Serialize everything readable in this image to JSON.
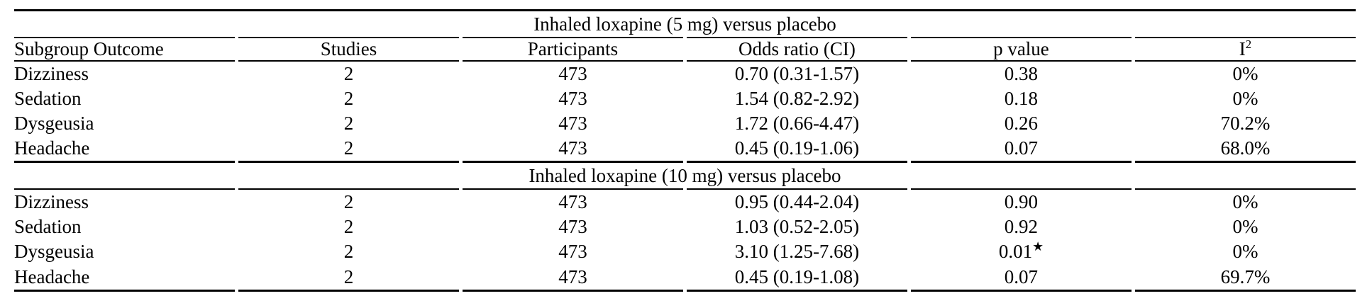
{
  "table": {
    "columns": [
      "Subgroup Outcome",
      "Studies",
      "Participants",
      "Odds ratio (CI)",
      "p value",
      "I"
    ],
    "i2_sup": "2",
    "sections": [
      {
        "title": "Inhaled loxapine (5 mg) versus placebo",
        "rows": [
          {
            "outcome": "Dizziness",
            "studies": "2",
            "participants": "473",
            "odds_ratio": "0.70 (0.31-1.57)",
            "p_value": "0.38",
            "p_marker": "",
            "i2": "0%"
          },
          {
            "outcome": "Sedation",
            "studies": "2",
            "participants": "473",
            "odds_ratio": "1.54 (0.82-2.92)",
            "p_value": "0.18",
            "p_marker": "",
            "i2": "0%"
          },
          {
            "outcome": "Dysgeusia",
            "studies": "2",
            "participants": "473",
            "odds_ratio": "1.72 (0.66-4.47)",
            "p_value": "0.26",
            "p_marker": "",
            "i2": "70.2%"
          },
          {
            "outcome": "Headache",
            "studies": "2",
            "participants": "473",
            "odds_ratio": "0.45 (0.19-1.06)",
            "p_value": "0.07",
            "p_marker": "",
            "i2": "68.0%"
          }
        ]
      },
      {
        "title": "Inhaled loxapine (10 mg) versus placebo",
        "rows": [
          {
            "outcome": "Dizziness",
            "studies": "2",
            "participants": "473",
            "odds_ratio": "0.95 (0.44-2.04)",
            "p_value": "0.90",
            "p_marker": "",
            "i2": "0%"
          },
          {
            "outcome": "Sedation",
            "studies": "2",
            "participants": "473",
            "odds_ratio": "1.03 (0.52-2.05)",
            "p_value": "0.92",
            "p_marker": "",
            "i2": "0%"
          },
          {
            "outcome": "Dysgeusia",
            "studies": "2",
            "participants": "473",
            "odds_ratio": "3.10 (1.25-7.68)",
            "p_value": "0.01",
            "p_marker": "★",
            "i2": "0%"
          },
          {
            "outcome": "Headache",
            "studies": "2",
            "participants": "473",
            "odds_ratio": "0.45 (0.19-1.08)",
            "p_value": "0.07",
            "p_marker": "",
            "i2": "69.7%"
          }
        ]
      }
    ],
    "colors": {
      "text": "#000000",
      "rule": "#000000",
      "background": "#ffffff"
    }
  }
}
